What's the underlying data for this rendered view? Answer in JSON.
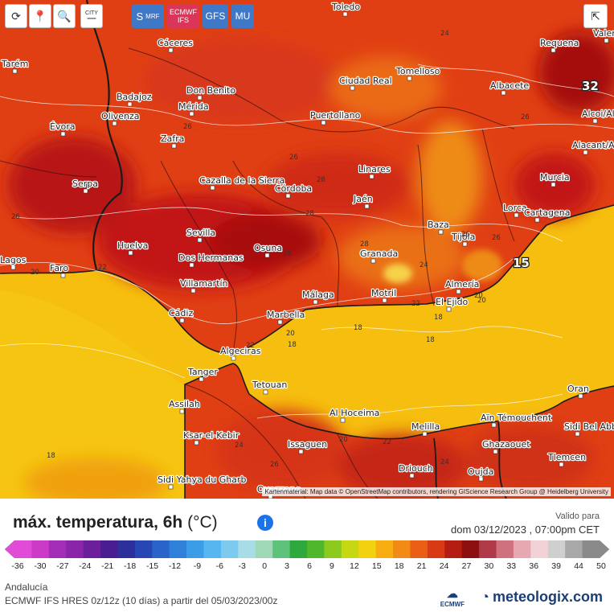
{
  "toolbar": {
    "refresh_icon": "refresh-icon",
    "locate_icon": "location-pin-icon",
    "zoom_icon": "zoom-icon",
    "city_label": "CITY",
    "share_icon": "share-icon"
  },
  "models": [
    {
      "label": "S MRF",
      "line1": "S",
      "line2": "MRF",
      "color": "#3f78c6"
    },
    {
      "label": "ECMWF IFS",
      "line1": "ECMWF",
      "line2": "IFS",
      "color": "#d9365a"
    },
    {
      "label": "GFS",
      "line1": "GFS",
      "line2": "",
      "color": "#3f78c6"
    },
    {
      "label": "MU",
      "line1": "MU",
      "line2": "",
      "color": "#3f78c6"
    }
  ],
  "cities": [
    {
      "name": "Toledo"
    },
    {
      "name": "Cáceres"
    },
    {
      "name": "Requena"
    },
    {
      "name": "Valencia"
    },
    {
      "name": "Tomelloso"
    },
    {
      "name": "Ciudad Real"
    },
    {
      "name": "Albacete"
    },
    {
      "name": "Alcoi/Alcoy"
    },
    {
      "name": "Badajoz"
    },
    {
      "name": "Don Benito"
    },
    {
      "name": "Mérida"
    },
    {
      "name": "Olivenza"
    },
    {
      "name": "Évora"
    },
    {
      "name": "Zafra"
    },
    {
      "name": "Puertollano"
    },
    {
      "name": "Alacant/Alicante"
    },
    {
      "name": "Linares"
    },
    {
      "name": "Murcia"
    },
    {
      "name": "Serpa"
    },
    {
      "name": "Cazalla de la Sierra"
    },
    {
      "name": "Córdoba"
    },
    {
      "name": "Jaén"
    },
    {
      "name": "Lorca"
    },
    {
      "name": "Cartagena"
    },
    {
      "name": "Baza"
    },
    {
      "name": "Sevilla"
    },
    {
      "name": "Tíjola"
    },
    {
      "name": "Huelva"
    },
    {
      "name": "Osuna"
    },
    {
      "name": "Dos Hermanas"
    },
    {
      "name": "Granada"
    },
    {
      "name": "Faro"
    },
    {
      "name": "Almería"
    },
    {
      "name": "Villamartín"
    },
    {
      "name": "Málaga"
    },
    {
      "name": "Motril"
    },
    {
      "name": "El Ejido"
    },
    {
      "name": "Cádiz"
    },
    {
      "name": "Marbella"
    },
    {
      "name": "Algeciras"
    },
    {
      "name": "Tanger"
    },
    {
      "name": "Tetouan"
    },
    {
      "name": "Assilah"
    },
    {
      "name": "Al Hoceima"
    },
    {
      "name": "Melilla"
    },
    {
      "name": "Ksar-el-Kebir"
    },
    {
      "name": "Issaguen"
    },
    {
      "name": "Aïn Témouchent"
    },
    {
      "name": "Oran"
    },
    {
      "name": "Sidi Bel Abbès"
    },
    {
      "name": "Ghazaouet"
    },
    {
      "name": "Tlemcen"
    },
    {
      "name": "Driouch"
    },
    {
      "name": "Oujda"
    },
    {
      "name": "Sidi Yahya du Gharb"
    },
    {
      "name": "Ouazzane"
    },
    {
      "name": "Tarém"
    },
    {
      "name": "Lagos"
    }
  ],
  "isotherm_labels": [
    "24",
    "26",
    "26",
    "28",
    "26",
    "28",
    "28",
    "26",
    "26",
    "24",
    "22",
    "20",
    "18",
    "18",
    "18",
    "22",
    "20",
    "18",
    "22",
    "20",
    "20",
    "26",
    "24",
    "22",
    "18",
    "24",
    "26",
    "28",
    "20"
  ],
  "highlights": [
    {
      "value": "32"
    },
    {
      "value": "15"
    }
  ],
  "attribution": "Kartenmaterial: Map data © OpenStreetMap contributors, rendering GIScience Research Group @ Heidelberg University",
  "legend": {
    "title": "máx. temperatura, 6h",
    "unit": "(°C)",
    "info_icon": "info-icon",
    "valid_label": "Valido para",
    "valid_date": "dom 03/12/2023 , 07:00pm CET",
    "ticks": [
      "-36",
      "-30",
      "-27",
      "-24",
      "-21",
      "-18",
      "-15",
      "-12",
      "-9",
      "-6",
      "-3",
      "0",
      "3",
      "6",
      "9",
      "12",
      "15",
      "18",
      "21",
      "24",
      "27",
      "30",
      "33",
      "36",
      "39",
      "44",
      "50"
    ],
    "colors": [
      "#e04bd7",
      "#cc3bc8",
      "#a22db7",
      "#8a24a8",
      "#6b1f9b",
      "#4b1d93",
      "#2d2f9a",
      "#2747b5",
      "#2a63c9",
      "#2f80d9",
      "#3b9de8",
      "#56b6f0",
      "#7ccbef",
      "#a8dde8",
      "#9ed8b4",
      "#5fc27a",
      "#2fa83e",
      "#4fb82a",
      "#8ccb1d",
      "#c6d812",
      "#f2d20f",
      "#f7ad12",
      "#f28a16",
      "#ea5f15",
      "#d73a14",
      "#b51d12",
      "#8c1010",
      "#b03a4a",
      "#d0717f",
      "#e8a8b2",
      "#f2d2d6",
      "#cfcfcf",
      "#a8a8a8",
      "#8a8a8a"
    ]
  },
  "footer": {
    "region": "Andalucía",
    "model_run": "ECMWF IFS HRES 0z/12z (10 días) a partir del 05/03/2023/00z",
    "ecmwf_logo": "ECMWF",
    "brand": "meteologix.com"
  }
}
